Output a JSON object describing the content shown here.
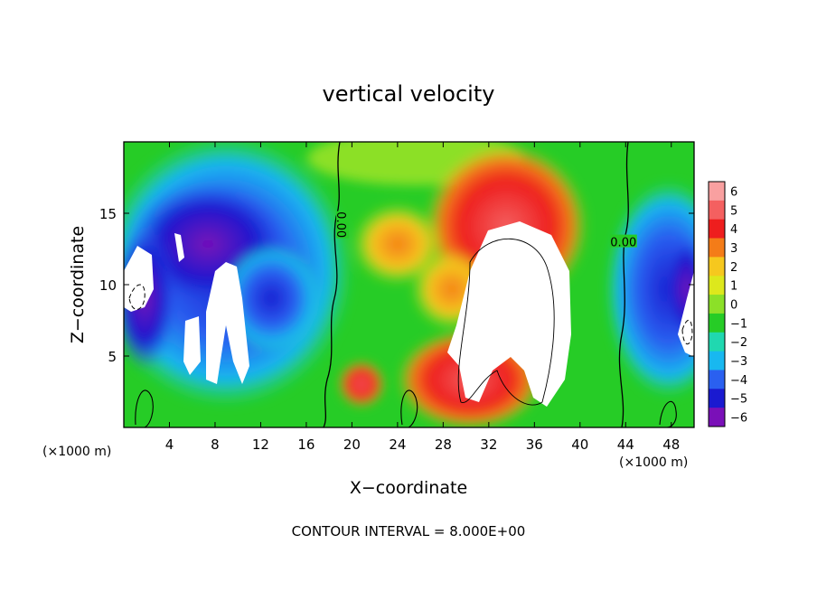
{
  "chart_data": {
    "type": "heatmap",
    "title": "vertical velocity",
    "xlabel": "X−coordinate",
    "ylabel": "Z−coordinate",
    "x_unit_left": "(×1000 m)",
    "x_unit_right": "(×1000 m)",
    "footer": "CONTOUR INTERVAL = 8.000E+00",
    "xlim": [
      0,
      50
    ],
    "ylim": [
      0,
      20
    ],
    "x_ticks": [
      4,
      8,
      12,
      16,
      20,
      24,
      28,
      32,
      36,
      40,
      44,
      48
    ],
    "x_tick_labels": [
      "4",
      "8",
      "12",
      "16",
      "20",
      "24",
      "28",
      "32",
      "36",
      "40",
      "44",
      "48"
    ],
    "y_ticks": [
      5,
      10,
      15
    ],
    "y_tick_labels": [
      "5",
      "10",
      "15"
    ],
    "contour_labels": [
      {
        "text": "0.00",
        "x": 19.1,
        "y": 14.2,
        "rotation": 90
      },
      {
        "text": "0.00",
        "x": 43.8,
        "y": 13.0,
        "rotation": 0
      }
    ],
    "colorbar": {
      "levels": [
        6,
        5,
        4,
        3,
        2,
        1,
        0,
        -1,
        -2,
        -3,
        -4,
        -5,
        -6
      ],
      "labels": [
        "6",
        "5",
        "4",
        "3",
        "2",
        "1",
        "0",
        "−1",
        "−2",
        "−3",
        "−4",
        "−5",
        "−6"
      ],
      "colors": [
        "#f9a0a0",
        "#f46060",
        "#ee1e1e",
        "#f47c18",
        "#f6c81e",
        "#dde81c",
        "#8ce028",
        "#26cc26",
        "#20d8b0",
        "#18b8f0",
        "#2a60f0",
        "#1a1ad0",
        "#7a10b8"
      ]
    }
  }
}
